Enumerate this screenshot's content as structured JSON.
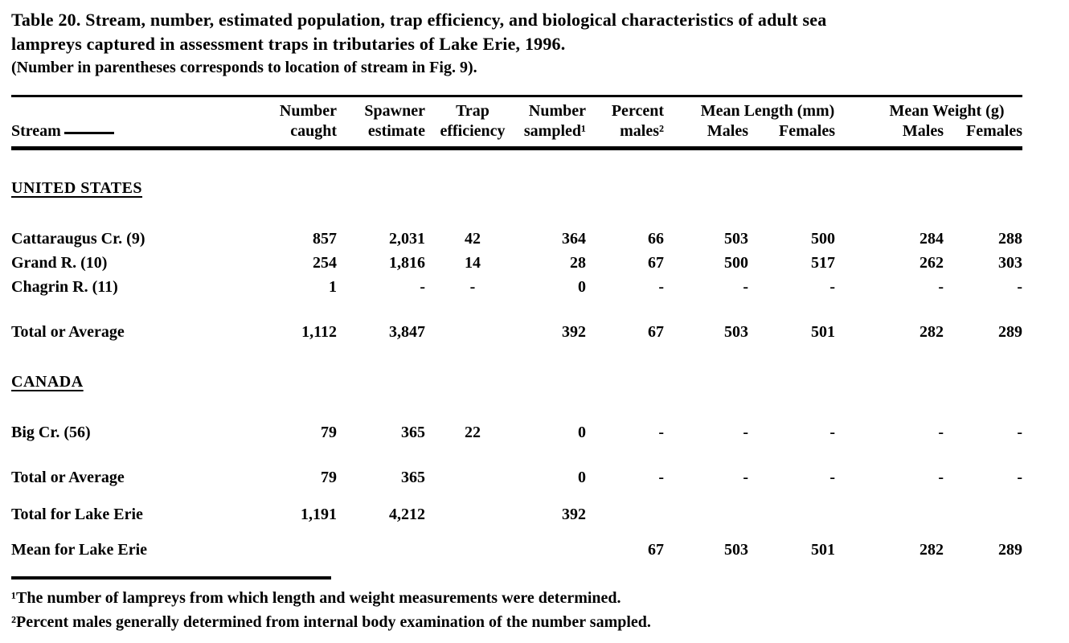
{
  "header": {
    "title_line1": "Table 20.  Stream, number, estimated population, trap efficiency, and biological characteristics of adult sea",
    "title_line2": "lampreys captured in assessment traps in tributaries of Lake Erie, 1996.",
    "note": "(Number in parentheses corresponds to location of stream in Fig. 9)."
  },
  "table": {
    "col_headers": {
      "stream": "Stream",
      "caught_top": "Number",
      "caught_bottom": "caught",
      "estimate_top": "Spawner",
      "estimate_bottom": "estimate",
      "efficiency_top": "Trap",
      "efficiency_bottom": "efficiency",
      "sampled_top": "Number",
      "sampled_bottom": "sampled¹",
      "males_top": "Percent",
      "males_bottom": "males²",
      "length_group": "Mean Length (mm)",
      "weight_group": "Mean Weight (g)",
      "length_males": "Males",
      "length_females": "Females",
      "weight_males": "Males",
      "weight_females": "Females"
    },
    "rows": [
      {
        "kind": "section",
        "label": "UNITED STATES"
      },
      {
        "kind": "stream",
        "label": "Cattaraugus Cr. (9)",
        "values": [
          "857",
          "2,031",
          "42",
          "364",
          "66",
          "503",
          "500",
          "284",
          "288"
        ]
      },
      {
        "kind": "stream",
        "label": "Grand R. (10)",
        "values": [
          "254",
          "1,816",
          "14",
          "28",
          "67",
          "500",
          "517",
          "262",
          "303"
        ]
      },
      {
        "kind": "stream",
        "label": "Chagrin R. (11)",
        "values": [
          "1",
          "-",
          "-",
          "0",
          "-",
          "-",
          "-",
          "-",
          "-"
        ]
      },
      {
        "kind": "total",
        "label": "Total or Average",
        "values": [
          "1,112",
          "3,847",
          "",
          "392",
          "67",
          "503",
          "501",
          "282",
          "289"
        ]
      },
      {
        "kind": "section",
        "label": "CANADA"
      },
      {
        "kind": "stream",
        "label": "Big Cr. (56)",
        "values": [
          "79",
          "365",
          "22",
          "0",
          "-",
          "-",
          "-",
          "-",
          "-"
        ]
      },
      {
        "kind": "total",
        "label": "Total or Average",
        "values": [
          "79",
          "365",
          "",
          "0",
          "-",
          "-",
          "-",
          "-",
          "-"
        ]
      },
      {
        "kind": "grand",
        "label": "Total for Lake Erie",
        "values": [
          "1,191",
          "4,212",
          "",
          "392",
          "",
          "",
          "",
          "",
          ""
        ]
      },
      {
        "kind": "mean",
        "label": "Mean for Lake Erie",
        "values": [
          "",
          "",
          "",
          "",
          "67",
          "503",
          "501",
          "282",
          "289"
        ]
      }
    ]
  },
  "footnotes": [
    "¹The number of lampreys from which length and weight measurements were determined.",
    "²Percent males generally determined from internal body examination of the number sampled."
  ]
}
